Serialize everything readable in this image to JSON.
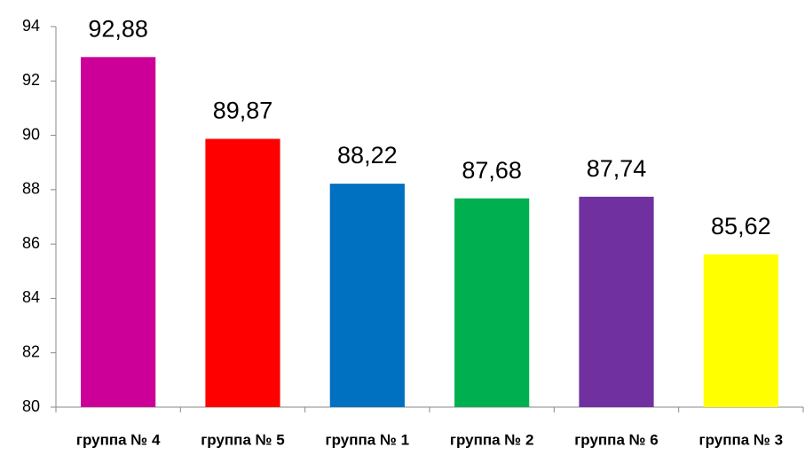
{
  "chart_data": {
    "type": "bar",
    "categories": [
      "группа № 4",
      "группа № 5",
      "группа № 1",
      "группа № 2",
      "группа № 6",
      "группа № 3"
    ],
    "values": [
      92.88,
      89.87,
      88.22,
      87.68,
      87.74,
      85.62
    ],
    "value_labels": [
      "92,88",
      "89,87",
      "88,22",
      "87,68",
      "87,74",
      "85,62"
    ],
    "colors": [
      "#cc0099",
      "#ff0000",
      "#0070c0",
      "#00b050",
      "#7030a0",
      "#ffff00"
    ],
    "ylim": [
      80,
      94
    ],
    "yticks": [
      80,
      82,
      84,
      86,
      88,
      90,
      92,
      94
    ],
    "grid": false
  }
}
